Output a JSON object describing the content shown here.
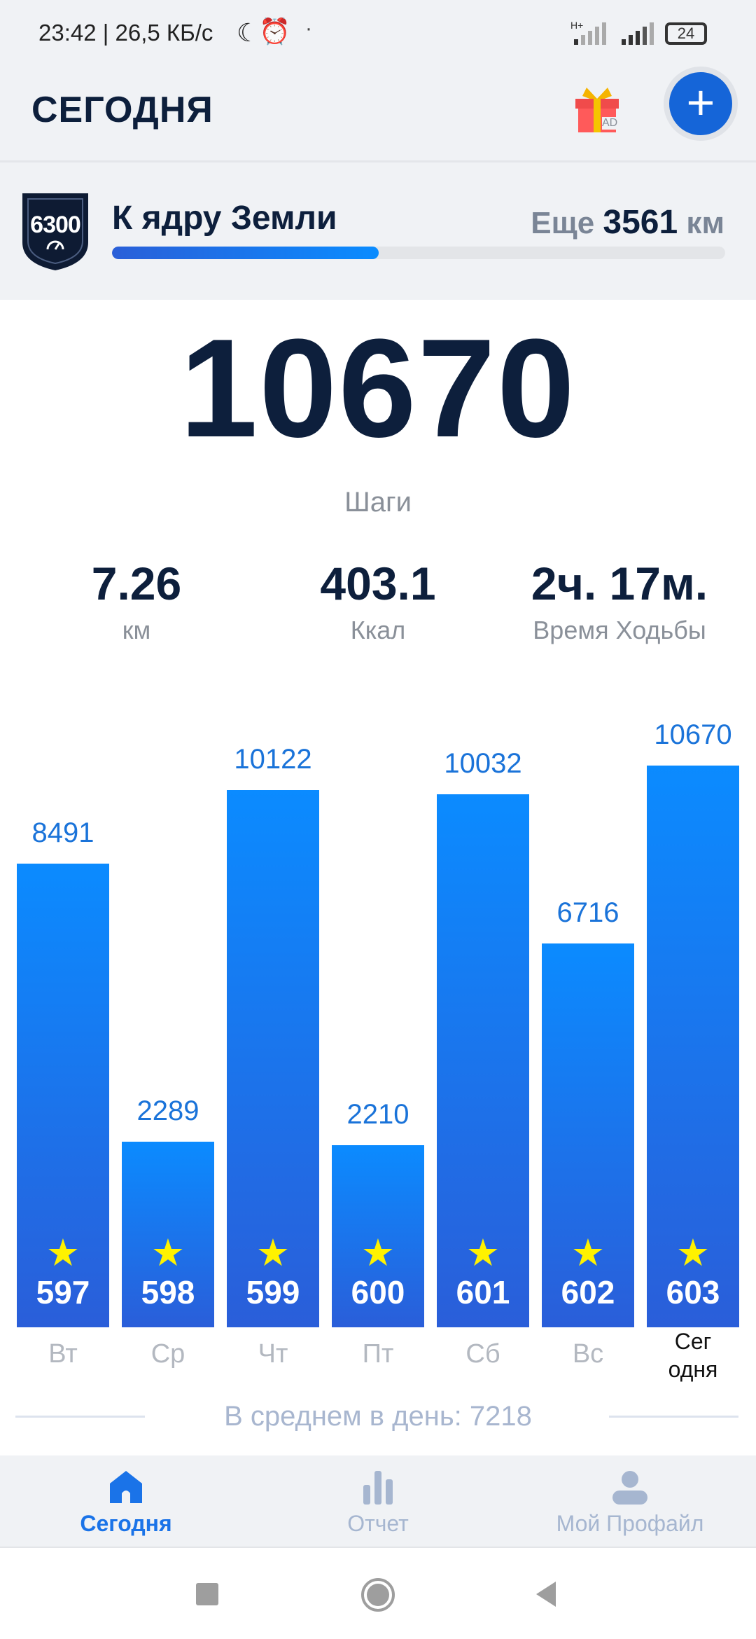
{
  "status_bar": {
    "time": "23:42 | 26,5 КБ/с",
    "network": "H+",
    "battery": "24"
  },
  "header": {
    "title": "СЕГОДНЯ",
    "gift_badge": "AD",
    "accent": "#1565d8"
  },
  "challenge": {
    "badge_number": "6300",
    "title": "К ядру Земли",
    "remaining_prefix": "Еще",
    "remaining_value": "3561",
    "remaining_unit": "км",
    "progress_percent": 43.5
  },
  "today": {
    "steps": "10670",
    "steps_label": "Шаги"
  },
  "stats": [
    {
      "value": "7.26",
      "label": "км"
    },
    {
      "value": "403.1",
      "label": "Ккал"
    },
    {
      "value": "2ч. 17м.",
      "label": "Время Ходьбы"
    }
  ],
  "chart_data": {
    "type": "bar",
    "categories": [
      "Вт",
      "Ср",
      "Чт",
      "Пт",
      "Сб",
      "Вс",
      "Сег\nодня"
    ],
    "values": [
      8491,
      2289,
      10122,
      2210,
      10032,
      6716,
      10670
    ],
    "day_numbers": [
      "597",
      "598",
      "599",
      "600",
      "601",
      "602",
      "603"
    ],
    "value_labels": [
      "8491",
      "2289",
      "10122",
      "2210",
      "10032",
      "6716",
      "10670"
    ],
    "bar_color": "#1a73e8"
  },
  "average": {
    "text": "В среднем в день: 7218"
  },
  "bottom_nav": [
    {
      "label": "Сегодня",
      "icon": "home-icon",
      "active": true
    },
    {
      "label": "Отчет",
      "icon": "bar-chart-icon",
      "active": false
    },
    {
      "label": "Мой Профайл",
      "icon": "person-icon",
      "active": false
    }
  ]
}
